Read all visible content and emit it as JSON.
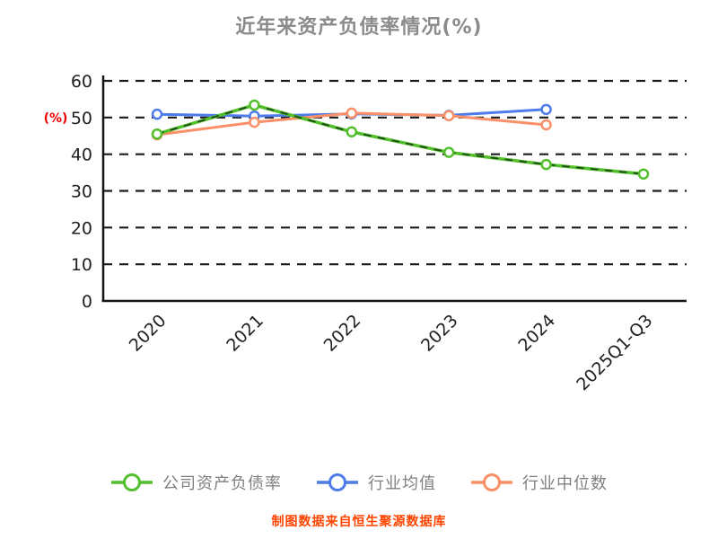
{
  "title": "近年来资产负债率情况(%)",
  "footer_note": "制图数据来自恒生聚源数据库",
  "colors": {
    "background": "#ffffff",
    "title": "#8b8b8b",
    "axis": "#141414",
    "grid": "#1a1a1a",
    "tick_label": "#1f1f1f",
    "ylabel": "#f00000",
    "legend_text": "#7f7f7f",
    "footer": "#ff4400",
    "marker_fill": "#ffffff"
  },
  "chart_data": {
    "type": "line",
    "title": "近年来资产负债率情况(%)",
    "ylabel": "(%)",
    "xlabel": "",
    "categories": [
      "2020",
      "2021",
      "2022",
      "2023",
      "2024",
      "2025Q1-Q3"
    ],
    "series": [
      {
        "name": "公司资产负债率",
        "values": [
          45.5,
          53.4,
          46.1,
          40.5,
          37.2,
          34.6
        ],
        "color": "#53bf2c",
        "overlay_dash_color": "#1d4a12",
        "marker": "circle"
      },
      {
        "name": "行业均值",
        "values": [
          50.9,
          50.4,
          51.0,
          50.6,
          52.2,
          null
        ],
        "color": "#4d7bea",
        "marker": "circle"
      },
      {
        "name": "行业中位数",
        "values": [
          45.3,
          48.7,
          51.2,
          50.5,
          48.0,
          null
        ],
        "color": "#fa8f68",
        "marker": "circle"
      }
    ],
    "ylim": [
      0,
      60
    ],
    "yticks": [
      0,
      10,
      20,
      30,
      40,
      50,
      60
    ],
    "grid": "horizontal-dashed",
    "x_tick_rotation": 45,
    "legend_position": "bottom"
  }
}
